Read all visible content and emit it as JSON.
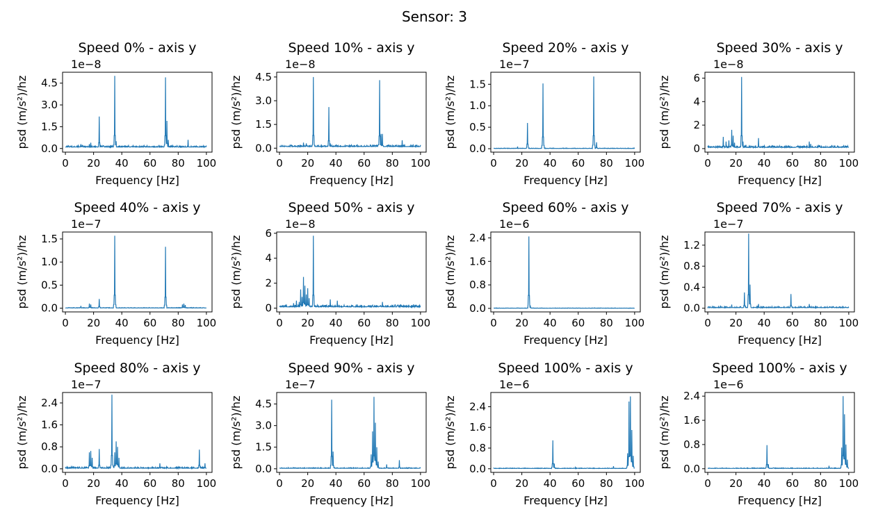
{
  "figure": {
    "title": "Sensor: 3"
  },
  "chart_data": [
    {
      "type": "line",
      "title": "Speed 0% - axis y",
      "xlabel": "Frequency [Hz]",
      "ylabel": "psd (m/s²)/hz",
      "y_offset_label": "1e−8",
      "xlim": [
        -2,
        104
      ],
      "ylim": [
        -0.25,
        5.25
      ],
      "xticks": [
        0,
        20,
        40,
        60,
        80,
        100
      ],
      "yticks": [
        0.0,
        1.5,
        3.0,
        4.5
      ],
      "ytick_labels": [
        "0.0",
        "1.5",
        "3.0",
        "4.5"
      ],
      "color": "#1f77b4",
      "baseline": 0.1,
      "noise": 0.1,
      "peaks": [
        [
          11,
          0.3
        ],
        [
          17,
          0.3
        ],
        [
          18,
          0.4
        ],
        [
          24,
          2.2
        ],
        [
          35,
          5.0
        ],
        [
          36,
          0.5
        ],
        [
          71,
          4.9
        ],
        [
          72,
          1.9
        ],
        [
          73,
          0.6
        ],
        [
          87,
          0.6
        ]
      ]
    },
    {
      "type": "line",
      "title": "Speed 10% - axis y",
      "xlabel": "Frequency [Hz]",
      "ylabel": "psd (m/s²)/hz",
      "y_offset_label": "1e−8",
      "xlim": [
        -2,
        104
      ],
      "ylim": [
        -0.25,
        4.8
      ],
      "xticks": [
        0,
        20,
        40,
        60,
        80,
        100
      ],
      "yticks": [
        0.0,
        1.5,
        3.0,
        4.5
      ],
      "ytick_labels": [
        "0.0",
        "1.5",
        "3.0",
        "4.5"
      ],
      "color": "#1f77b4",
      "baseline": 0.1,
      "noise": 0.1,
      "peaks": [
        [
          17,
          0.35
        ],
        [
          19,
          0.3
        ],
        [
          24,
          4.5
        ],
        [
          35,
          2.6
        ],
        [
          36,
          0.3
        ],
        [
          71,
          4.3
        ],
        [
          72,
          0.9
        ],
        [
          73,
          0.9
        ],
        [
          87,
          0.5
        ],
        [
          100,
          0.2
        ]
      ]
    },
    {
      "type": "line",
      "title": "Speed 20% - axis y",
      "xlabel": "Frequency [Hz]",
      "ylabel": "psd (m/s²)/hz",
      "y_offset_label": "1e−7",
      "xlim": [
        -2,
        104
      ],
      "ylim": [
        -0.08,
        1.78
      ],
      "xticks": [
        0,
        20,
        40,
        60,
        80,
        100
      ],
      "yticks": [
        0.0,
        0.5,
        1.0,
        1.5
      ],
      "ytick_labels": [
        "0.0",
        "0.5",
        "1.0",
        "1.5"
      ],
      "color": "#1f77b4",
      "baseline": 0.005,
      "noise": 0.01,
      "peaks": [
        [
          17,
          0.05
        ],
        [
          24,
          0.6
        ],
        [
          35,
          1.52
        ],
        [
          71,
          1.68
        ],
        [
          73,
          0.15
        ]
      ]
    },
    {
      "type": "line",
      "title": "Speed 30% - axis y",
      "xlabel": "Frequency [Hz]",
      "ylabel": "psd (m/s²)/hz",
      "y_offset_label": "1e−8",
      "xlim": [
        -2,
        104
      ],
      "ylim": [
        -0.3,
        6.5
      ],
      "xticks": [
        0,
        20,
        40,
        60,
        80,
        100
      ],
      "yticks": [
        0,
        2,
        4,
        6
      ],
      "ytick_labels": [
        "0",
        "2",
        "4",
        "6"
      ],
      "color": "#1f77b4",
      "baseline": 0.1,
      "noise": 0.15,
      "peaks": [
        [
          11,
          1.0
        ],
        [
          13,
          0.6
        ],
        [
          15,
          0.7
        ],
        [
          17,
          1.6
        ],
        [
          18,
          1.1
        ],
        [
          19,
          0.5
        ],
        [
          24,
          6.1
        ],
        [
          25,
          0.6
        ],
        [
          36,
          0.9
        ],
        [
          72,
          0.6
        ],
        [
          73,
          0.4
        ],
        [
          88,
          0.3
        ]
      ]
    },
    {
      "type": "line",
      "title": "Speed 40% - axis y",
      "xlabel": "Frequency [Hz]",
      "ylabel": "psd (m/s²)/hz",
      "y_offset_label": "1e−7",
      "xlim": [
        -2,
        104
      ],
      "ylim": [
        -0.08,
        1.65
      ],
      "xticks": [
        0,
        20,
        40,
        60,
        80,
        100
      ],
      "yticks": [
        0.0,
        0.5,
        1.0,
        1.5
      ],
      "ytick_labels": [
        "0.0",
        "0.5",
        "1.0",
        "1.5"
      ],
      "color": "#1f77b4",
      "baseline": 0.005,
      "noise": 0.01,
      "peaks": [
        [
          11,
          0.05
        ],
        [
          17,
          0.1
        ],
        [
          18,
          0.08
        ],
        [
          24,
          0.2
        ],
        [
          35,
          1.57
        ],
        [
          71,
          1.33
        ],
        [
          83,
          0.08
        ],
        [
          84,
          0.1
        ],
        [
          85,
          0.07
        ]
      ]
    },
    {
      "type": "line",
      "title": "Speed 50% - axis y",
      "xlabel": "Frequency [Hz]",
      "ylabel": "psd (m/s²)/hz",
      "y_offset_label": "1e−8",
      "xlim": [
        -2,
        104
      ],
      "ylim": [
        -0.3,
        6.1
      ],
      "xticks": [
        0,
        20,
        40,
        60,
        80,
        100
      ],
      "yticks": [
        0,
        2,
        4,
        6
      ],
      "ytick_labels": [
        "0",
        "2",
        "4",
        "6"
      ],
      "color": "#1f77b4",
      "baseline": 0.1,
      "noise": 0.15,
      "peaks": [
        [
          10,
          0.4
        ],
        [
          12,
          0.6
        ],
        [
          14,
          0.5
        ],
        [
          15,
          1.5
        ],
        [
          16,
          0.9
        ],
        [
          17,
          2.5
        ],
        [
          18,
          1.8
        ],
        [
          19,
          1.1
        ],
        [
          20,
          1.6
        ],
        [
          21,
          0.8
        ],
        [
          24,
          5.8
        ],
        [
          36,
          0.7
        ],
        [
          41,
          0.6
        ],
        [
          55,
          0.3
        ],
        [
          73,
          0.5
        ],
        [
          82,
          0.3
        ],
        [
          86,
          0.3
        ],
        [
          95,
          0.3
        ]
      ]
    },
    {
      "type": "line",
      "title": "Speed 60% - axis y",
      "xlabel": "Frequency [Hz]",
      "ylabel": "psd (m/s²)/hz",
      "y_offset_label": "1e−6",
      "xlim": [
        -2,
        104
      ],
      "ylim": [
        -0.12,
        2.6
      ],
      "xticks": [
        0,
        20,
        40,
        60,
        80,
        100
      ],
      "yticks": [
        0.0,
        0.8,
        1.6,
        2.4
      ],
      "ytick_labels": [
        "0.0",
        "0.8",
        "1.6",
        "2.4"
      ],
      "color": "#1f77b4",
      "baseline": 0.005,
      "noise": 0.01,
      "peaks": [
        [
          25,
          2.45
        ],
        [
          26,
          0.1
        ]
      ]
    },
    {
      "type": "line",
      "title": "Speed 70% - axis y",
      "xlabel": "Frequency [Hz]",
      "ylabel": "psd (m/s²)/hz",
      "y_offset_label": "1e−7",
      "xlim": [
        -2,
        104
      ],
      "ylim": [
        -0.07,
        1.45
      ],
      "xticks": [
        0,
        20,
        40,
        60,
        80,
        100
      ],
      "yticks": [
        0.0,
        0.4,
        0.8,
        1.2
      ],
      "ytick_labels": [
        "0.0",
        "0.4",
        "0.8",
        "1.2"
      ],
      "color": "#1f77b4",
      "baseline": 0.01,
      "noise": 0.02,
      "peaks": [
        [
          9,
          0.05
        ],
        [
          17,
          0.07
        ],
        [
          26,
          0.3
        ],
        [
          29,
          1.42
        ],
        [
          30,
          0.45
        ],
        [
          36,
          0.08
        ],
        [
          59,
          0.27
        ],
        [
          72,
          0.08
        ]
      ]
    },
    {
      "type": "line",
      "title": "Speed 80% - axis y",
      "xlabel": "Frequency [Hz]",
      "ylabel": "psd (m/s²)/hz",
      "y_offset_label": "1e−7",
      "xlim": [
        -2,
        104
      ],
      "ylim": [
        -0.13,
        2.78
      ],
      "xticks": [
        0,
        20,
        40,
        60,
        80,
        100
      ],
      "yticks": [
        0.0,
        0.8,
        1.6,
        2.4
      ],
      "ytick_labels": [
        "0.0",
        "0.8",
        "1.6",
        "2.4"
      ],
      "color": "#1f77b4",
      "baseline": 0.02,
      "noise": 0.05,
      "peaks": [
        [
          17,
          0.6
        ],
        [
          18,
          0.65
        ],
        [
          19,
          0.4
        ],
        [
          24,
          0.72
        ],
        [
          33,
          2.7
        ],
        [
          35,
          0.6
        ],
        [
          36,
          1.0
        ],
        [
          37,
          0.8
        ],
        [
          38,
          0.4
        ],
        [
          67,
          0.2
        ],
        [
          95,
          0.7
        ],
        [
          99,
          0.2
        ]
      ]
    },
    {
      "type": "line",
      "title": "Speed 90% - axis y",
      "xlabel": "Frequency [Hz]",
      "ylabel": "psd (m/s²)/hz",
      "y_offset_label": "1e−7",
      "xlim": [
        -2,
        104
      ],
      "ylim": [
        -0.25,
        5.3
      ],
      "xticks": [
        0,
        20,
        40,
        60,
        80,
        100
      ],
      "yticks": [
        0.0,
        1.5,
        3.0,
        4.5
      ],
      "ytick_labels": [
        "0.0",
        "1.5",
        "3.0",
        "4.5"
      ],
      "color": "#1f77b4",
      "baseline": 0.03,
      "noise": 0.05,
      "peaks": [
        [
          37,
          4.8
        ],
        [
          38,
          1.2
        ],
        [
          65,
          1.0
        ],
        [
          66,
          2.6
        ],
        [
          67,
          5.0
        ],
        [
          68,
          3.2
        ],
        [
          69,
          1.5
        ],
        [
          70,
          0.5
        ],
        [
          76,
          0.3
        ],
        [
          85,
          0.6
        ]
      ]
    },
    {
      "type": "line",
      "title": "Speed 100% - axis y",
      "xlabel": "Frequency [Hz]",
      "ylabel": "psd (m/s²)/hz",
      "y_offset_label": "1e−6",
      "xlim": [
        -2,
        104
      ],
      "ylim": [
        -0.14,
        2.95
      ],
      "xticks": [
        0,
        20,
        40,
        60,
        80,
        100
      ],
      "yticks": [
        0.0,
        0.8,
        1.6,
        2.4
      ],
      "ytick_labels": [
        "0.0",
        "0.8",
        "1.6",
        "2.4"
      ],
      "color": "#1f77b4",
      "baseline": 0.01,
      "noise": 0.02,
      "peaks": [
        [
          42,
          1.1
        ],
        [
          43,
          0.2
        ],
        [
          58,
          0.05
        ],
        [
          85,
          0.1
        ],
        [
          95,
          0.6
        ],
        [
          96,
          2.6
        ],
        [
          97,
          2.8
        ],
        [
          98,
          1.5
        ],
        [
          99,
          0.5
        ]
      ]
    },
    {
      "type": "line",
      "title": "Speed 100% - axis y",
      "xlabel": "Frequency [Hz]",
      "ylabel": "psd (m/s²)/hz",
      "y_offset_label": "1e−6",
      "xlim": [
        -2,
        104
      ],
      "ylim": [
        -0.12,
        2.52
      ],
      "xticks": [
        0,
        20,
        40,
        60,
        80,
        100
      ],
      "yticks": [
        0.0,
        0.8,
        1.6,
        2.4
      ],
      "ytick_labels": [
        "0.0",
        "0.8",
        "1.6",
        "2.4"
      ],
      "color": "#1f77b4",
      "baseline": 0.01,
      "noise": 0.02,
      "peaks": [
        [
          42,
          0.78
        ],
        [
          43,
          0.15
        ],
        [
          86,
          0.1
        ],
        [
          95,
          0.7
        ],
        [
          96,
          2.4
        ],
        [
          97,
          1.8
        ],
        [
          98,
          0.8
        ],
        [
          99,
          0.3
        ]
      ]
    }
  ]
}
